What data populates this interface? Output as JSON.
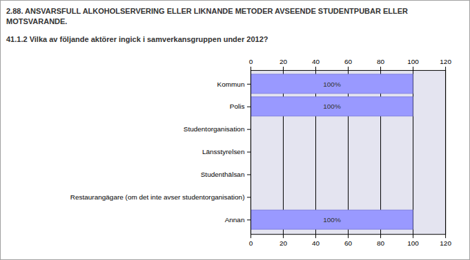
{
  "chart_data": {
    "type": "bar",
    "orientation": "horizontal",
    "title": "2.88. ANSVARSFULL ALKOHOLSERVERING ELLER LIKNANDE METODER AVSEENDE STUDENTPUBAR ELLER MOTSVARANDE.",
    "subtitle": "41.1.2 Vilka av följande aktörer ingick i samverkansgruppen under 2012?",
    "categories": [
      "Kommun",
      "Polis",
      "Studentorganisation",
      "Länsstyrelsen",
      "Studenthälsan",
      "Restaurangägare (om det inte avser studentorganisation)",
      "Annan"
    ],
    "values": [
      100,
      100,
      0,
      0,
      0,
      0,
      100
    ],
    "value_labels": [
      "100%",
      "100%",
      null,
      null,
      null,
      null,
      "100%"
    ],
    "data_labels": true,
    "color": "#9999ff",
    "xlim": [
      0,
      120
    ],
    "xticks": [
      0,
      20,
      40,
      60,
      80,
      100,
      120
    ],
    "grid": true
  }
}
